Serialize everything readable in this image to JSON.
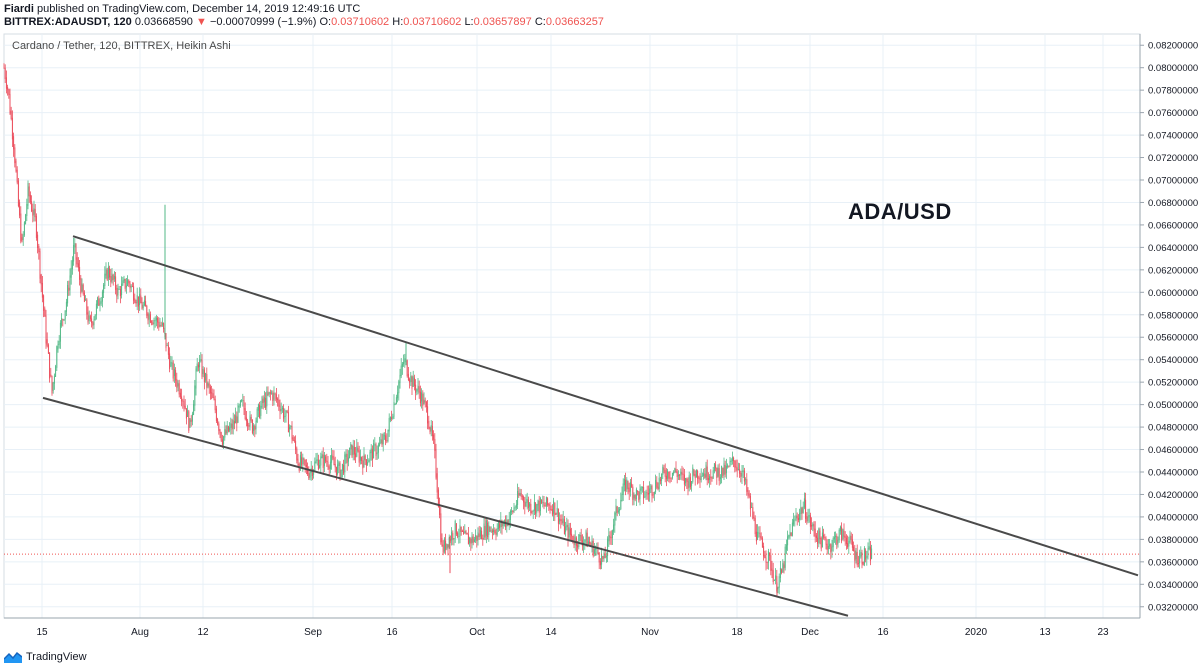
{
  "header": {
    "author": "Fiardi",
    "published_text": "published on TradingView.com, December 14, 2019 12:49:16 UTC",
    "symbol": "BITTREX:ADAUSDT, 120",
    "last_price": "0.03668590",
    "change_arrow": "▼",
    "change": "−0.00070999 (−1.9%)",
    "open_label": "O:",
    "open": "0.03710602",
    "high_label": "H:",
    "high": "0.03710602",
    "low_label": "L:",
    "low": "0.03657897",
    "close_label": "C:",
    "close": "0.03663257"
  },
  "legend_title": "Cardano / Tether, 120, BITTREX, Heikin Ashi",
  "annotation": "ADA/USD",
  "footer": {
    "brand": "TradingView",
    "logo_icon": "tradingview-logo-icon"
  },
  "colors": {
    "up": "#53b987",
    "down": "#eb4d5c",
    "trendline": "#4a4a4a",
    "last_price_line": "#ef5350",
    "grid": "#e8f0f7"
  },
  "chart_data": {
    "type": "candlestick",
    "style": "Heikin Ashi",
    "y_range": [
      0.031,
      0.083
    ],
    "y_ticks": [
      "0.08200000",
      "0.08000000",
      "0.07800000",
      "0.07600000",
      "0.07400000",
      "0.07200000",
      "0.07000000",
      "0.06800000",
      "0.06600000",
      "0.06400000",
      "0.06200000",
      "0.06000000",
      "0.05800000",
      "0.05600000",
      "0.05400000",
      "0.05200000",
      "0.05000000",
      "0.04800000",
      "0.04600000",
      "0.04400000",
      "0.04200000",
      "0.04000000",
      "0.03800000",
      "0.03600000",
      "0.03400000",
      "0.03200000"
    ],
    "x_ticks": [
      {
        "label": "15",
        "x": 42
      },
      {
        "label": "Aug",
        "x": 140
      },
      {
        "label": "12",
        "x": 203
      },
      {
        "label": "Sep",
        "x": 313
      },
      {
        "label": "16",
        "x": 392
      },
      {
        "label": "Oct",
        "x": 477
      },
      {
        "label": "14",
        "x": 551
      },
      {
        "label": "Nov",
        "x": 650
      },
      {
        "label": "18",
        "x": 737
      },
      {
        "label": "Dec",
        "x": 810
      },
      {
        "label": "16",
        "x": 883
      },
      {
        "label": "2020",
        "x": 976
      },
      {
        "label": "13",
        "x": 1045
      },
      {
        "label": "23",
        "x": 1103
      }
    ],
    "last_price": 0.0366859,
    "trendlines": [
      {
        "name": "upper",
        "p1": [
          73,
          0.065
        ],
        "p2": [
          1138,
          0.0348
        ]
      },
      {
        "name": "lower",
        "p1": [
          43,
          0.0506
        ],
        "p2": [
          848,
          0.0312
        ]
      }
    ],
    "anchors": [
      [
        4,
        0.08
      ],
      [
        8,
        0.078
      ],
      [
        14,
        0.073
      ],
      [
        18,
        0.068
      ],
      [
        22,
        0.064
      ],
      [
        28,
        0.069
      ],
      [
        36,
        0.066
      ],
      [
        42,
        0.06
      ],
      [
        46,
        0.056
      ],
      [
        52,
        0.051
      ],
      [
        58,
        0.056
      ],
      [
        66,
        0.059
      ],
      [
        74,
        0.064
      ],
      [
        82,
        0.06
      ],
      [
        90,
        0.057
      ],
      [
        98,
        0.059
      ],
      [
        108,
        0.062
      ],
      [
        118,
        0.06
      ],
      [
        128,
        0.061
      ],
      [
        140,
        0.059
      ],
      [
        150,
        0.058
      ],
      [
        162,
        0.057
      ],
      [
        172,
        0.053
      ],
      [
        182,
        0.051
      ],
      [
        190,
        0.048
      ],
      [
        198,
        0.054
      ],
      [
        206,
        0.052
      ],
      [
        214,
        0.05
      ],
      [
        222,
        0.047
      ],
      [
        232,
        0.048
      ],
      [
        242,
        0.05
      ],
      [
        252,
        0.048
      ],
      [
        262,
        0.05
      ],
      [
        272,
        0.051
      ],
      [
        280,
        0.05
      ],
      [
        290,
        0.048
      ],
      [
        298,
        0.045
      ],
      [
        308,
        0.044
      ],
      [
        318,
        0.045
      ],
      [
        330,
        0.045
      ],
      [
        340,
        0.044
      ],
      [
        352,
        0.046
      ],
      [
        364,
        0.045
      ],
      [
        376,
        0.046
      ],
      [
        386,
        0.047
      ],
      [
        396,
        0.051
      ],
      [
        404,
        0.054
      ],
      [
        412,
        0.052
      ],
      [
        420,
        0.051
      ],
      [
        428,
        0.049
      ],
      [
        434,
        0.046
      ],
      [
        438,
        0.042
      ],
      [
        442,
        0.037
      ],
      [
        448,
        0.038
      ],
      [
        456,
        0.039
      ],
      [
        464,
        0.038
      ],
      [
        474,
        0.038
      ],
      [
        486,
        0.039
      ],
      [
        498,
        0.039
      ],
      [
        510,
        0.04
      ],
      [
        520,
        0.042
      ],
      [
        530,
        0.041
      ],
      [
        542,
        0.041
      ],
      [
        554,
        0.041
      ],
      [
        564,
        0.039
      ],
      [
        574,
        0.038
      ],
      [
        586,
        0.038
      ],
      [
        596,
        0.037
      ],
      [
        604,
        0.036
      ],
      [
        612,
        0.039
      ],
      [
        618,
        0.041
      ],
      [
        626,
        0.043
      ],
      [
        636,
        0.042
      ],
      [
        646,
        0.042
      ],
      [
        656,
        0.043
      ],
      [
        666,
        0.044
      ],
      [
        676,
        0.044
      ],
      [
        686,
        0.043
      ],
      [
        696,
        0.044
      ],
      [
        706,
        0.044
      ],
      [
        716,
        0.044
      ],
      [
        726,
        0.044
      ],
      [
        734,
        0.045
      ],
      [
        742,
        0.044
      ],
      [
        750,
        0.041
      ],
      [
        758,
        0.038
      ],
      [
        764,
        0.037
      ],
      [
        770,
        0.036
      ],
      [
        776,
        0.034
      ],
      [
        782,
        0.035
      ],
      [
        788,
        0.038
      ],
      [
        796,
        0.04
      ],
      [
        804,
        0.041
      ],
      [
        812,
        0.039
      ],
      [
        820,
        0.038
      ],
      [
        830,
        0.0375
      ],
      [
        840,
        0.0385
      ],
      [
        848,
        0.038
      ],
      [
        856,
        0.0365
      ],
      [
        864,
        0.0365
      ],
      [
        872,
        0.0367
      ]
    ],
    "spikes": [
      [
        165,
        0.0678
      ],
      [
        406,
        0.0555
      ],
      [
        777,
        0.033
      ],
      [
        450,
        0.035
      ]
    ]
  }
}
